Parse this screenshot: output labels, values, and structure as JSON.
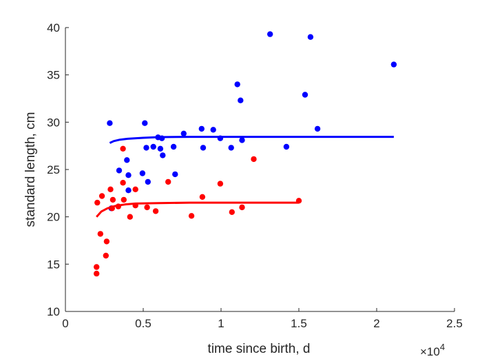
{
  "chart_data": {
    "type": "scatter",
    "title": "",
    "xlabel": "time since birth, d",
    "ylabel": "standard length, cm",
    "xlim": [
      0,
      25000
    ],
    "ylim": [
      10,
      40
    ],
    "x_ticks": [
      0,
      5000,
      10000,
      15000,
      20000,
      25000
    ],
    "x_tick_labels": [
      "0",
      "0.5",
      "1",
      "1.5",
      "2",
      "2.5"
    ],
    "x_multiplier_label": "×10",
    "x_multiplier_exponent": "4",
    "y_ticks": [
      10,
      15,
      20,
      25,
      30,
      35,
      40
    ],
    "y_tick_labels": [
      "10",
      "15",
      "20",
      "25",
      "30",
      "35",
      "40"
    ],
    "grid": false,
    "legend": "none",
    "series": [
      {
        "color": "#0000ff",
        "kind": "points",
        "points": [
          [
            2850,
            29.9
          ],
          [
            2950,
            20.9
          ],
          [
            3450,
            24.9
          ],
          [
            3950,
            26.0
          ],
          [
            4050,
            24.4
          ],
          [
            4050,
            22.8
          ],
          [
            4950,
            24.6
          ],
          [
            5100,
            29.9
          ],
          [
            5200,
            27.3
          ],
          [
            5300,
            23.7
          ],
          [
            5650,
            27.4
          ],
          [
            5950,
            28.4
          ],
          [
            6100,
            27.2
          ],
          [
            6200,
            28.3
          ],
          [
            6250,
            26.5
          ],
          [
            6950,
            27.4
          ],
          [
            7050,
            24.5
          ],
          [
            7600,
            28.8
          ],
          [
            8750,
            29.3
          ],
          [
            8850,
            27.3
          ],
          [
            9500,
            29.2
          ],
          [
            9950,
            28.3
          ],
          [
            10650,
            27.3
          ],
          [
            11050,
            34.0
          ],
          [
            11250,
            32.3
          ],
          [
            11350,
            28.1
          ],
          [
            13150,
            39.3
          ],
          [
            14200,
            27.4
          ],
          [
            15400,
            32.9
          ],
          [
            15750,
            39.0
          ],
          [
            16200,
            29.3
          ],
          [
            21100,
            36.1
          ]
        ]
      },
      {
        "color": "#ff0000",
        "kind": "points",
        "points": [
          [
            2000,
            14.0
          ],
          [
            2000,
            14.7
          ],
          [
            2050,
            21.5
          ],
          [
            2250,
            18.2
          ],
          [
            2350,
            22.2
          ],
          [
            2600,
            15.9
          ],
          [
            2650,
            17.4
          ],
          [
            2900,
            22.9
          ],
          [
            3050,
            21.8
          ],
          [
            3000,
            20.9
          ],
          [
            3400,
            21.1
          ],
          [
            3700,
            27.2
          ],
          [
            3700,
            23.6
          ],
          [
            3750,
            21.8
          ],
          [
            4150,
            20.0
          ],
          [
            4500,
            21.2
          ],
          [
            4500,
            22.9
          ],
          [
            5250,
            21.0
          ],
          [
            5800,
            20.6
          ],
          [
            6600,
            23.7
          ],
          [
            8100,
            20.1
          ],
          [
            8800,
            22.1
          ],
          [
            9950,
            23.5
          ],
          [
            10700,
            20.5
          ],
          [
            11350,
            21.0
          ],
          [
            12100,
            26.1
          ],
          [
            15000,
            21.7
          ]
        ]
      },
      {
        "color": "#0000ff",
        "kind": "line",
        "points": [
          [
            2850,
            27.8
          ],
          [
            3100,
            28.0
          ],
          [
            3500,
            28.15
          ],
          [
            4000,
            28.25
          ],
          [
            5000,
            28.35
          ],
          [
            6000,
            28.42
          ],
          [
            8000,
            28.45
          ],
          [
            12000,
            28.45
          ],
          [
            16000,
            28.45
          ],
          [
            21100,
            28.45
          ]
        ]
      },
      {
        "color": "#ff0000",
        "kind": "line",
        "points": [
          [
            2000,
            20.0
          ],
          [
            2300,
            20.55
          ],
          [
            2700,
            20.9
          ],
          [
            3200,
            21.15
          ],
          [
            3800,
            21.3
          ],
          [
            4500,
            21.4
          ],
          [
            6000,
            21.45
          ],
          [
            8000,
            21.5
          ],
          [
            11000,
            21.5
          ],
          [
            15000,
            21.5
          ]
        ]
      }
    ]
  }
}
